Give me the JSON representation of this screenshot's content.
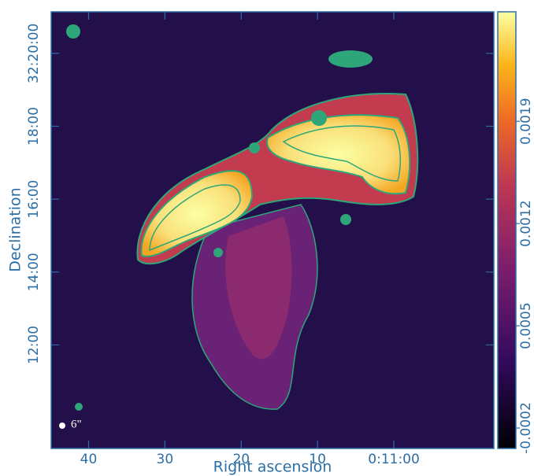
{
  "chart_data": {
    "type": "image",
    "xlabel": "Right ascension",
    "ylabel": "Declination",
    "xlim": [
      44.9,
      -13.1
    ],
    "xticks": [
      40,
      30,
      20,
      10,
      {
        "value": 0,
        "label": "0:11:00"
      }
    ],
    "ylim": [
      9.16,
      21.14
    ],
    "yticks": [
      {
        "value": 12,
        "label": "12:00"
      },
      {
        "value": 14,
        "label": "14:00"
      },
      {
        "value": 16,
        "label": "16:00"
      },
      {
        "value": 18,
        "label": "18:00"
      },
      {
        "value": 20,
        "label": "32:20:00"
      }
    ],
    "colorbar": {
      "clim": [
        -0.00034,
        0.00265
      ],
      "ticks": [
        -0.0002,
        0.0005,
        0.0012,
        0.0019
      ]
    },
    "beam_label": "6\""
  }
}
